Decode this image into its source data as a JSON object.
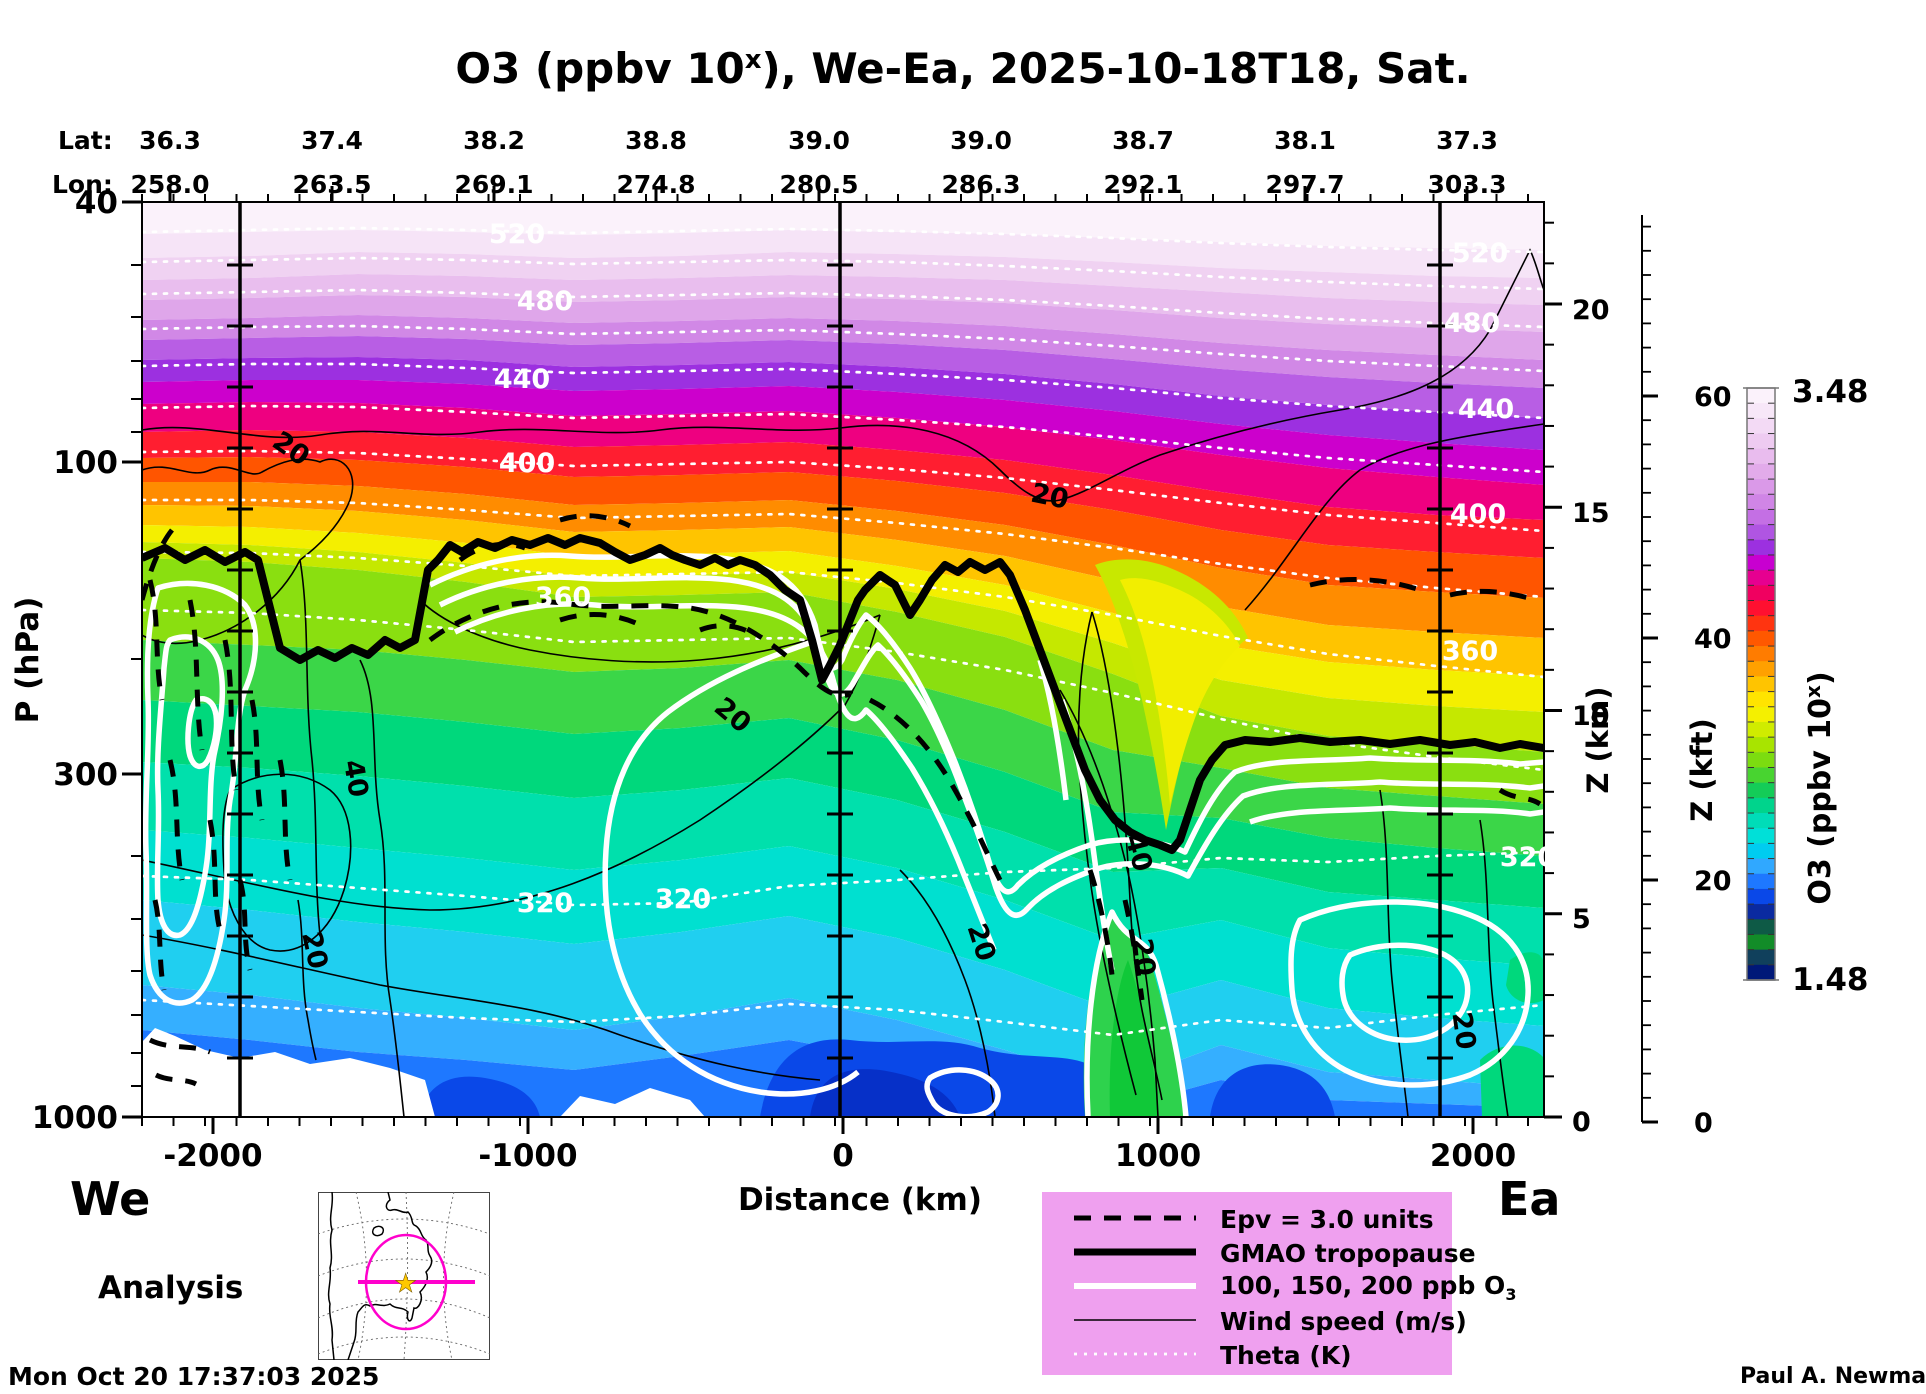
{
  "title": {
    "prefix": "O3 (ppbv 10",
    "sup": "x",
    "suffix": "), We-Ea, 2025-10-18T18, Sat."
  },
  "top_axis": {
    "lat_label": "Lat:",
    "lon_label": "Lon:",
    "lat": [
      "36.3",
      "37.4",
      "38.2",
      "38.8",
      "39.0",
      "39.0",
      "38.7",
      "38.1",
      "37.3"
    ],
    "lon": [
      "258.0",
      "263.5",
      "269.1",
      "274.8",
      "280.5",
      "286.3",
      "292.1",
      "297.7",
      "303.3"
    ]
  },
  "x_axis": {
    "label": "Distance (km)",
    "ticks": [
      "-2000",
      "-1000",
      "0",
      "1000",
      "2000"
    ]
  },
  "y_axis": {
    "label": "P (hPa)",
    "ticks": [
      "40",
      "100",
      "300",
      "1000"
    ]
  },
  "z_km_axis": {
    "label": "Z (km)",
    "ticks": [
      "0",
      "5",
      "10",
      "15",
      "20"
    ]
  },
  "z_kft_axis": {
    "label": "Z (kft)",
    "ticks": [
      "0",
      "20",
      "40",
      "60"
    ]
  },
  "colorbar": {
    "max": "3.48",
    "min": "1.48",
    "label_prefix": "O3 (ppbv 10",
    "label_sup": "x",
    "label_suffix": ")"
  },
  "contour_labels": {
    "theta": [
      "520",
      "480",
      "440",
      "400",
      "360",
      "320"
    ],
    "wind": [
      "20",
      "40"
    ]
  },
  "endpoints": {
    "left": "We",
    "right": "Ea"
  },
  "analysis_label": "Analysis",
  "timestamp": "Mon Oct 20 17:37:03 2025",
  "credit": "Paul A. Newman (NASA",
  "legend": {
    "items": [
      {
        "label": "Epv = 3.0 units"
      },
      {
        "label": "GMAO tropopause"
      },
      {
        "label": "100, 150, 200 ppb O",
        "sub": "3"
      },
      {
        "label": "Wind speed (m/s)"
      },
      {
        "label": "Theta (K)"
      }
    ]
  },
  "chart_data": {
    "type": "heatmap",
    "title": "O3 (ppbv 10^x), We-Ea, 2025-10-18T18, Sat.",
    "field": "Ozone mixing ratio, log10(ppbv), vertical pressure cross-section along a West-East transect",
    "xlabel": "Distance (km)",
    "x_range_km": [
      -2225,
      2225
    ],
    "x_ticks": [
      -2000,
      -1000,
      0,
      1000,
      2000
    ],
    "ylabel": "P (hPa)",
    "y_scale": "log",
    "y_range_hPa": [
      40,
      1000
    ],
    "y_ticks": [
      40,
      100,
      300,
      1000
    ],
    "right_axis_km": {
      "label": "Z (km)",
      "ticks": [
        0,
        5,
        10,
        15,
        20
      ]
    },
    "right_axis_kft": {
      "label": "Z (kft)",
      "ticks": [
        0,
        20,
        40,
        60
      ]
    },
    "transect_waypoints": {
      "lat": [
        36.3,
        37.4,
        38.2,
        38.8,
        39.0,
        39.0,
        38.7,
        38.1,
        37.3
      ],
      "lon": [
        258.0,
        263.5,
        269.1,
        274.8,
        280.5,
        286.3,
        292.1,
        297.7,
        303.3
      ]
    },
    "colorbar": {
      "label": "O3 (ppbv 10^x)",
      "min_log10_ppbv": 1.48,
      "max_log10_ppbv": 3.48,
      "gradient_top_to_bottom": [
        "pale-pink-white",
        "violet",
        "purple",
        "magenta",
        "red",
        "orange",
        "yellow",
        "green",
        "cyan",
        "blue",
        "navy",
        "dark-green",
        "navy"
      ]
    },
    "overlay_contours": [
      {
        "name": "Epv = 3.0 units",
        "style": "thick dashed black"
      },
      {
        "name": "GMAO tropopause",
        "style": "thick solid black"
      },
      {
        "name": "O3",
        "levels_ppb": [
          100,
          150,
          200
        ],
        "style": "thick solid white"
      },
      {
        "name": "Wind speed (m/s)",
        "levels": [
          20,
          40
        ],
        "style": "thin solid black"
      },
      {
        "name": "Theta (K)",
        "labeled_levels": [
          320,
          360,
          400,
          440,
          480,
          520
        ],
        "style": "dotted white"
      }
    ],
    "tropopause_profile": {
      "distance_km": [
        -2225,
        -1900,
        -1700,
        -1500,
        -1350,
        -1000,
        -700,
        -400,
        -100,
        100,
        200,
        300,
        500,
        700,
        850,
        950,
        1050,
        1150,
        1300,
        1700,
        2225
      ],
      "pressure_hPa": [
        140,
        145,
        195,
        195,
        150,
        142,
        140,
        145,
        150,
        155,
        185,
        160,
        150,
        180,
        280,
        360,
        395,
        330,
        265,
        268,
        270
      ]
    },
    "structure_notes": "Stratified rainbow O3 field: ~3000 ppbv (pale) near 40 hPa decreasing to ~30 ppbv (blue) near 1000 hPa; deep tropopause fold near +1000 km; white terrain mask at lower-left; analysis time 2025-10-18T18Z"
  }
}
